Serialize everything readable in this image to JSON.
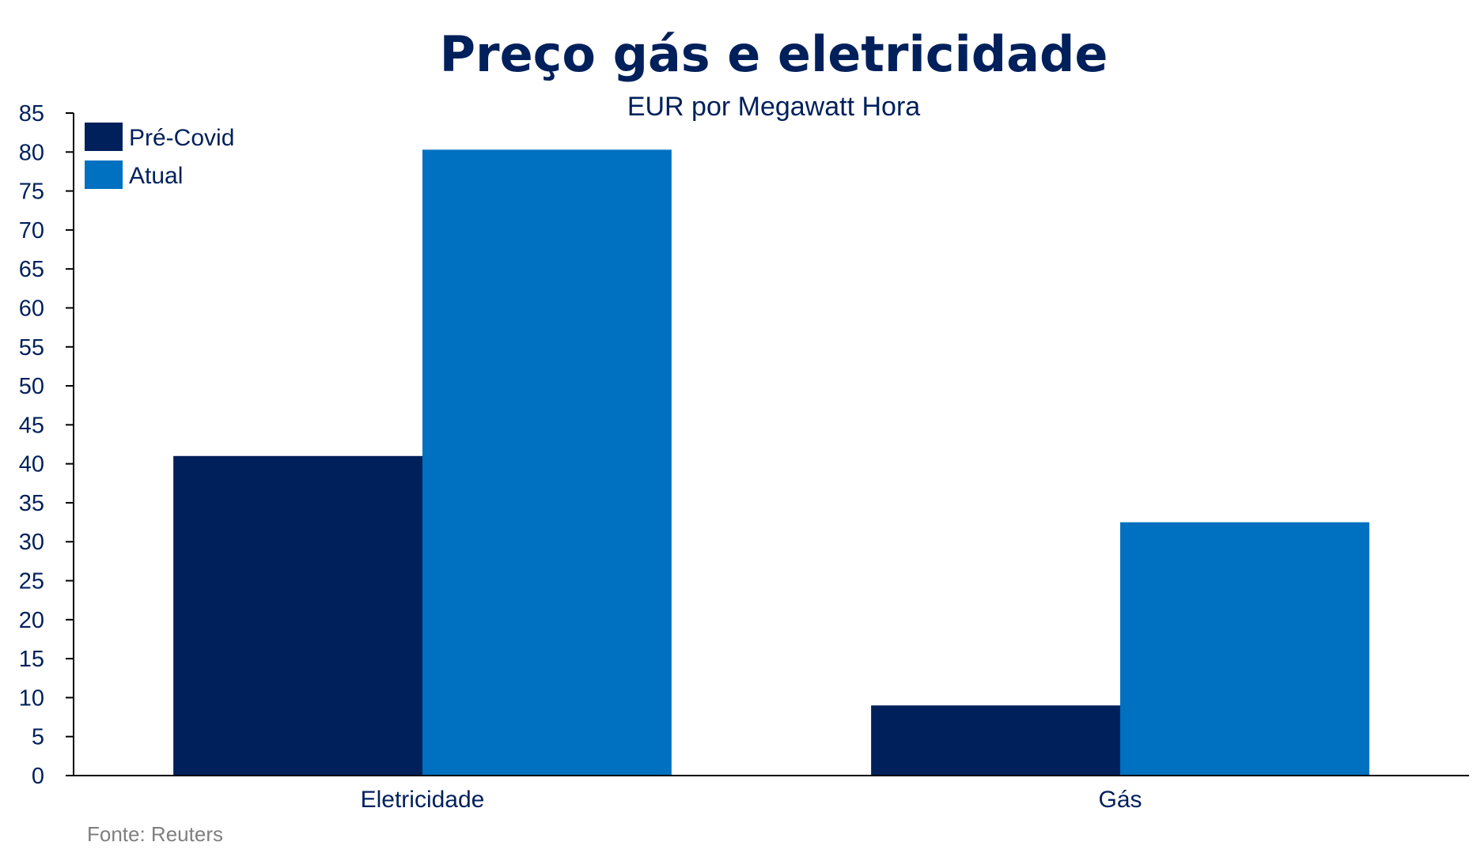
{
  "chart_data": {
    "type": "bar",
    "title": "Preço gás e eletricidade",
    "subtitle": "EUR por Megawatt Hora",
    "xlabel": "",
    "ylabel": "",
    "ylim": [
      0,
      85
    ],
    "yticks": [
      "0",
      "5",
      "10",
      "15",
      "20",
      "25",
      "30",
      "35",
      "40",
      "45",
      "50",
      "55",
      "60",
      "65",
      "70",
      "75",
      "80",
      "85"
    ],
    "categories": [
      "Eletricidade",
      "Gás"
    ],
    "series": [
      {
        "name": "Pré-Covid",
        "values": [
          41,
          9
        ],
        "color": "#00205B"
      },
      {
        "name": "Atual",
        "values": [
          80.3,
          32.5
        ],
        "color": "#0070C0"
      }
    ],
    "legend_position": "top-left",
    "grid": false,
    "source": "Fonte: Reuters",
    "colors": {
      "text": "#00205B",
      "source_text": "#7F7F7F",
      "axis": "#000000"
    }
  }
}
